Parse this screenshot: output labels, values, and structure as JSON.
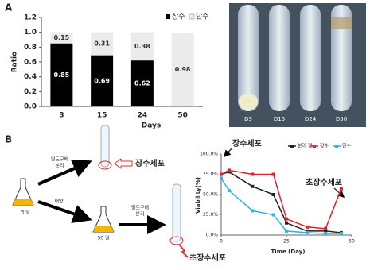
{
  "panels": [
    "A",
    "B"
  ],
  "chart_data": [
    {
      "type": "bar",
      "stacked": true,
      "ylabel": "Ratio",
      "xlabel": "Days",
      "categories": [
        "3",
        "15",
        "24",
        "50"
      ],
      "series": [
        {
          "name": "장수",
          "color": "#000000",
          "values": [
            0.85,
            0.69,
            0.62,
            0.01
          ]
        },
        {
          "name": "단수",
          "color": "#ebebeb",
          "values": [
            0.15,
            0.31,
            0.38,
            0.98
          ]
        }
      ],
      "ylim": [
        0,
        1.2
      ],
      "yticks": [
        {
          "value": 0,
          "label": "0.0"
        },
        0.2,
        0.4,
        0.6,
        0.8,
        {
          "value": 1,
          "label": "1.0"
        },
        1.2
      ],
      "legend": "top-right"
    },
    {
      "type": "line",
      "ylabel": "Viability(%)",
      "xlabel": "Time (Day)",
      "x": [
        0,
        3,
        12,
        20,
        25,
        33,
        40,
        46
      ],
      "series": [
        {
          "name": "분리 전",
          "color": "#222222",
          "values": [
            75,
            78,
            60,
            50,
            15,
            5,
            5,
            3
          ]
        },
        {
          "name": "장수",
          "color": "#e0202a",
          "values": [
            75,
            80,
            75,
            75,
            20,
            10,
            8,
            57
          ]
        },
        {
          "name": "단수",
          "color": "#2eb3e6",
          "values": [
            70,
            55,
            30,
            25,
            5,
            3,
            2,
            2
          ]
        }
      ],
      "xlim": [
        0,
        50
      ],
      "xticks": [
        0,
        25,
        50
      ],
      "ylim": [
        0,
        100
      ],
      "yticks": [
        {
          "value": 0,
          "label": "0.0%"
        },
        {
          "value": 25,
          "label": "25.0%"
        },
        {
          "value": 50,
          "label": "50.0%"
        },
        {
          "value": 75,
          "label": "75.0%"
        },
        {
          "value": 100,
          "label": "100.0%"
        }
      ],
      "legend": "top",
      "annotations": [
        "장수세포",
        "초장수세포"
      ]
    }
  ],
  "photo": {
    "labels": [
      "D3",
      "D15",
      "D24",
      "D50"
    ]
  },
  "diagram": {
    "start": "3 일",
    "separate_top": [
      "밀도구배",
      "분리"
    ],
    "culture": "배양",
    "end": "50 일",
    "separate_bottom": [
      "밀도구배",
      "분리"
    ],
    "result_top": "장수세포",
    "result_bottom": "초장수세포"
  }
}
